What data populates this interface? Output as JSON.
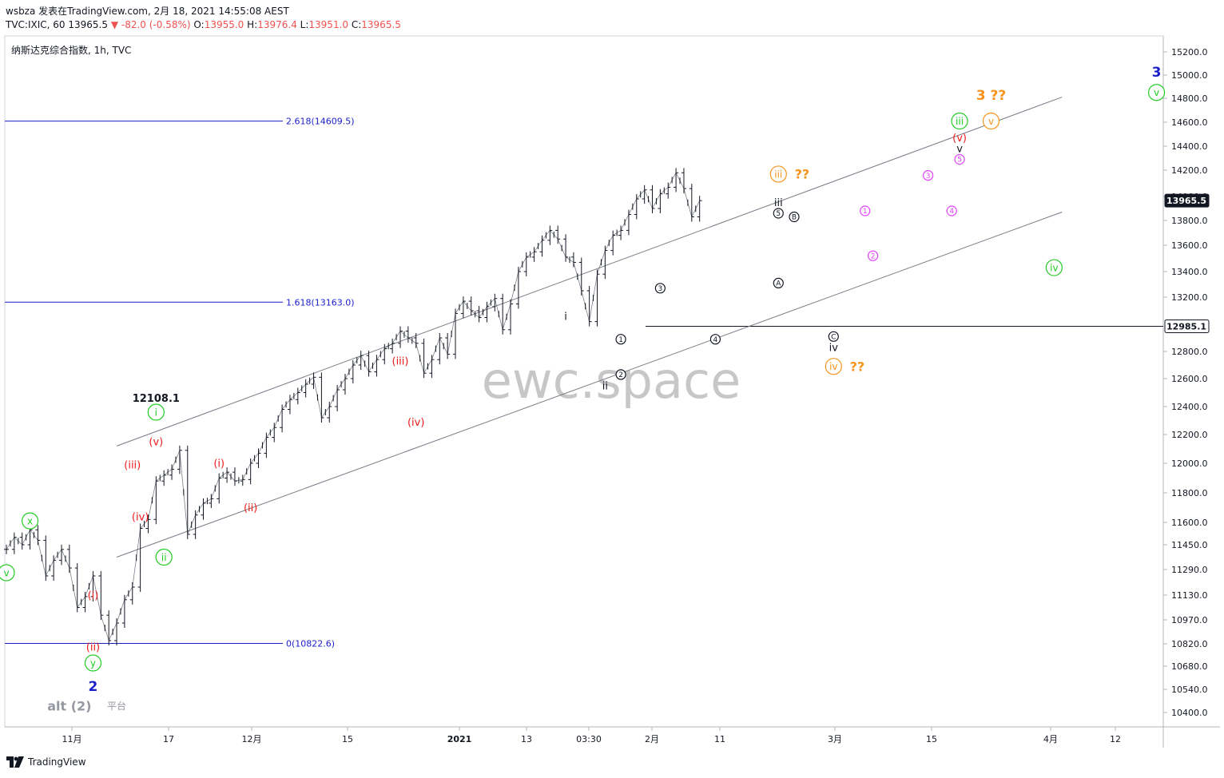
{
  "header": {
    "publish_line": "wsbza 发表在TradingView.com, 2月 18, 2021 14:55:08 AEST",
    "quote": {
      "prefix": "TVC:IXIC, 60",
      "last": "13965.5",
      "change": "-82.0 (-0.58%)",
      "open_label": "O:",
      "open": "13955.0",
      "high_label": "H:",
      "high": "13976.4",
      "low_label": "L:",
      "low": "13951.0",
      "close_label": "C:",
      "close": "13965.5"
    }
  },
  "footer": {
    "brand": "TradingView"
  },
  "colors": {
    "red": "#ef1c1c",
    "green": "#22cc22",
    "orange": "#f7931a",
    "magenta": "#e040fb",
    "blue": "#1a1fc9",
    "fib": "#1a1fc9",
    "channel": "#787b86",
    "price_badge": "#131722"
  },
  "chart_data": {
    "type": "line",
    "title": "纳斯达克综合指数, 1h, TVC",
    "watermark": "ewc.space",
    "y_axis": {
      "ticks": [
        "15200.0",
        "15000.0",
        "14800.0",
        "14600.0",
        "14400.0",
        "14200.0",
        "14000.0",
        "13800.0",
        "13600.0",
        "13400.0",
        "13200.0",
        "12800.0",
        "12600.0",
        "12400.0",
        "12200.0",
        "12000.0",
        "11800.0",
        "11600.0",
        "11450.0",
        "11290.0",
        "11130.0",
        "10970.0",
        "10820.0",
        "10680.0",
        "10540.0",
        "10400.0"
      ]
    },
    "x_axis": {
      "ticks": [
        "11月",
        "17",
        "12月",
        "15",
        "2021",
        "13",
        "03:30",
        "2月",
        "11",
        "3月",
        "15",
        "4月",
        "12"
      ]
    },
    "price_labels": [
      {
        "value": "13965.5",
        "y": 13965.5,
        "style": "dark"
      },
      {
        "value": "12985.1",
        "y": 12985.1,
        "style": "outline"
      }
    ],
    "horizontal_line": {
      "y": 12985.1,
      "x_start": "2月",
      "x_end": "right-edge"
    },
    "fibonacci": [
      {
        "label": "2.618(14609.5)",
        "level": 14609.5
      },
      {
        "label": "1.618(13163.0)",
        "level": 13163.0
      },
      {
        "label": "0(10822.6)",
        "level": 10822.6
      }
    ],
    "price_series": [
      {
        "x": 0,
        "y": 11420
      },
      {
        "x": 1,
        "y": 11500
      },
      {
        "x": 2,
        "y": 11450
      },
      {
        "x": 3,
        "y": 11550
      },
      {
        "x": 4,
        "y": 11480
      },
      {
        "x": 5,
        "y": 11250
      },
      {
        "x": 6,
        "y": 11350
      },
      {
        "x": 7,
        "y": 11420
      },
      {
        "x": 8,
        "y": 11300
      },
      {
        "x": 9,
        "y": 11050
      },
      {
        "x": 10,
        "y": 11120
      },
      {
        "x": 11,
        "y": 11250
      },
      {
        "x": 12,
        "y": 11000
      },
      {
        "x": 13,
        "y": 10840
      },
      {
        "x": 14,
        "y": 10950
      },
      {
        "x": 15,
        "y": 11100
      },
      {
        "x": 16,
        "y": 11180
      },
      {
        "x": 17,
        "y": 11560
      },
      {
        "x": 18,
        "y": 11620
      },
      {
        "x": 19,
        "y": 11880
      },
      {
        "x": 20,
        "y": 11920
      },
      {
        "x": 21,
        "y": 11960
      },
      {
        "x": 22,
        "y": 12090
      },
      {
        "x": 23,
        "y": 11520
      },
      {
        "x": 24,
        "y": 11650
      },
      {
        "x": 25,
        "y": 11730
      },
      {
        "x": 26,
        "y": 11760
      },
      {
        "x": 27,
        "y": 11900
      },
      {
        "x": 28,
        "y": 11940
      },
      {
        "x": 29,
        "y": 11880
      },
      {
        "x": 30,
        "y": 11890
      },
      {
        "x": 31,
        "y": 12000
      },
      {
        "x": 32,
        "y": 12070
      },
      {
        "x": 33,
        "y": 12180
      },
      {
        "x": 34,
        "y": 12250
      },
      {
        "x": 35,
        "y": 12380
      },
      {
        "x": 36,
        "y": 12450
      },
      {
        "x": 37,
        "y": 12500
      },
      {
        "x": 38,
        "y": 12560
      },
      {
        "x": 39,
        "y": 12610
      },
      {
        "x": 40,
        "y": 12320
      },
      {
        "x": 41,
        "y": 12400
      },
      {
        "x": 42,
        "y": 12520
      },
      {
        "x": 43,
        "y": 12600
      },
      {
        "x": 44,
        "y": 12700
      },
      {
        "x": 45,
        "y": 12770
      },
      {
        "x": 46,
        "y": 12650
      },
      {
        "x": 47,
        "y": 12740
      },
      {
        "x": 48,
        "y": 12820
      },
      {
        "x": 49,
        "y": 12860
      },
      {
        "x": 50,
        "y": 12950
      },
      {
        "x": 51,
        "y": 12900
      },
      {
        "x": 52,
        "y": 12860
      },
      {
        "x": 53,
        "y": 12640
      },
      {
        "x": 54,
        "y": 12740
      },
      {
        "x": 55,
        "y": 12900
      },
      {
        "x": 56,
        "y": 12780
      },
      {
        "x": 57,
        "y": 13080
      },
      {
        "x": 58,
        "y": 13170
      },
      {
        "x": 59,
        "y": 13100
      },
      {
        "x": 60,
        "y": 13050
      },
      {
        "x": 61,
        "y": 13130
      },
      {
        "x": 62,
        "y": 13190
      },
      {
        "x": 63,
        "y": 12960
      },
      {
        "x": 64,
        "y": 13150
      },
      {
        "x": 65,
        "y": 13400
      },
      {
        "x": 66,
        "y": 13510
      },
      {
        "x": 67,
        "y": 13550
      },
      {
        "x": 68,
        "y": 13640
      },
      {
        "x": 69,
        "y": 13720
      },
      {
        "x": 70,
        "y": 13650
      },
      {
        "x": 71,
        "y": 13510
      },
      {
        "x": 72,
        "y": 13470
      },
      {
        "x": 73,
        "y": 13250
      },
      {
        "x": 74,
        "y": 13020
      },
      {
        "x": 75,
        "y": 13380
      },
      {
        "x": 76,
        "y": 13560
      },
      {
        "x": 77,
        "y": 13680
      },
      {
        "x": 78,
        "y": 13720
      },
      {
        "x": 79,
        "y": 13850
      },
      {
        "x": 80,
        "y": 13980
      },
      {
        "x": 81,
        "y": 14050
      },
      {
        "x": 82,
        "y": 13900
      },
      {
        "x": 83,
        "y": 14020
      },
      {
        "x": 84,
        "y": 14070
      },
      {
        "x": 85,
        "y": 14180
      },
      {
        "x": 86,
        "y": 14060
      },
      {
        "x": 87,
        "y": 13830
      },
      {
        "x": 88,
        "y": 13965.5
      }
    ],
    "channel": {
      "upper": [
        {
          "x": 14,
          "y": 12120
        },
        {
          "x": 134,
          "y": 14810
        }
      ],
      "lower": [
        {
          "x": 14,
          "y": 11370
        },
        {
          "x": 134,
          "y": 13870
        }
      ]
    },
    "annotations": [
      {
        "text": "x",
        "style": "green-circle",
        "x": 3,
        "y": 11610
      },
      {
        "text": "v",
        "style": "green-circle",
        "x": 0,
        "y": 11270
      },
      {
        "text": "y",
        "style": "green-circle",
        "x": 11,
        "y": 10700
      },
      {
        "text": "2",
        "style": "blue",
        "x": 11,
        "y": 10560
      },
      {
        "text": "alt (2)",
        "style": "gray",
        "x": 8,
        "y": 10440
      },
      {
        "text": "平台",
        "style": "gray-small",
        "x": 14,
        "y": 10440
      },
      {
        "text": "(i)",
        "style": "red",
        "x": 11,
        "y": 11130
      },
      {
        "text": "(ii)",
        "style": "red",
        "x": 11,
        "y": 10800
      },
      {
        "text": "i",
        "style": "green-circle",
        "x": 19,
        "y": 12360
      },
      {
        "text": "ii",
        "style": "green-circle",
        "x": 20,
        "y": 11370
      },
      {
        "text": "12108.1",
        "style": "black-bold",
        "x": 19,
        "y": 12460
      },
      {
        "text": "(v)",
        "style": "red",
        "x": 19,
        "y": 12150
      },
      {
        "text": "(iii)",
        "style": "red",
        "x": 16,
        "y": 11990
      },
      {
        "text": "(iv)",
        "style": "red",
        "x": 17,
        "y": 11640
      },
      {
        "text": "(i)",
        "style": "red",
        "x": 27,
        "y": 12000
      },
      {
        "text": "(ii)",
        "style": "red",
        "x": 31,
        "y": 11700
      },
      {
        "text": "(iii)",
        "style": "red",
        "x": 50,
        "y": 12730
      },
      {
        "text": "(iv)",
        "style": "red",
        "x": 52,
        "y": 12290
      },
      {
        "text": "i",
        "style": "black",
        "x": 71,
        "y": 13060
      },
      {
        "text": "ii",
        "style": "black",
        "x": 76,
        "y": 12550
      },
      {
        "text": "1",
        "style": "black-circle",
        "x": 78,
        "y": 12890
      },
      {
        "text": "2",
        "style": "black-circle",
        "x": 78,
        "y": 12630
      },
      {
        "text": "3",
        "style": "black-circle",
        "x": 83,
        "y": 13270
      },
      {
        "text": "4",
        "style": "black-circle",
        "x": 90,
        "y": 12890
      },
      {
        "text": "5",
        "style": "black-circle",
        "x": 98,
        "y": 13860
      },
      {
        "text": "iii",
        "style": "black",
        "x": 98,
        "y": 13950
      },
      {
        "text": "B",
        "style": "black-circle",
        "x": 100,
        "y": 13830
      },
      {
        "text": "A",
        "style": "black-circle",
        "x": 98,
        "y": 13310
      },
      {
        "text": "iii",
        "style": "orange-circle",
        "x": 98,
        "y": 14170
      },
      {
        "text": "??",
        "style": "orange",
        "x": 101,
        "y": 14170
      },
      {
        "text": "C",
        "style": "black-circle",
        "x": 105,
        "y": 12910
      },
      {
        "text": "iv",
        "style": "black",
        "x": 105,
        "y": 12830
      },
      {
        "text": "iv",
        "style": "orange-circle",
        "x": 105,
        "y": 12690
      },
      {
        "text": "??",
        "style": "orange",
        "x": 108,
        "y": 12690
      },
      {
        "text": "1",
        "style": "magenta-circle",
        "x": 109,
        "y": 13880
      },
      {
        "text": "2",
        "style": "magenta-circle",
        "x": 110,
        "y": 13520
      },
      {
        "text": "3",
        "style": "magenta-circle",
        "x": 117,
        "y": 14160
      },
      {
        "text": "4",
        "style": "magenta-circle",
        "x": 120,
        "y": 13880
      },
      {
        "text": "5",
        "style": "magenta-circle",
        "x": 121,
        "y": 14290
      },
      {
        "text": "v",
        "style": "black",
        "x": 121,
        "y": 14380
      },
      {
        "text": "(v)",
        "style": "red",
        "x": 121,
        "y": 14470
      },
      {
        "text": "iii",
        "style": "green-circle",
        "x": 121,
        "y": 14610
      },
      {
        "text": "v",
        "style": "orange-circle",
        "x": 125,
        "y": 14610
      },
      {
        "text": "3 ??",
        "style": "orange-bold",
        "x": 125,
        "y": 14830
      },
      {
        "text": "v",
        "style": "green-circle",
        "x": 146,
        "y": 14850
      },
      {
        "text": "3",
        "style": "blue",
        "x": 146,
        "y": 15030
      },
      {
        "text": "iv",
        "style": "green-circle",
        "x": 133,
        "y": 13430
      }
    ]
  }
}
